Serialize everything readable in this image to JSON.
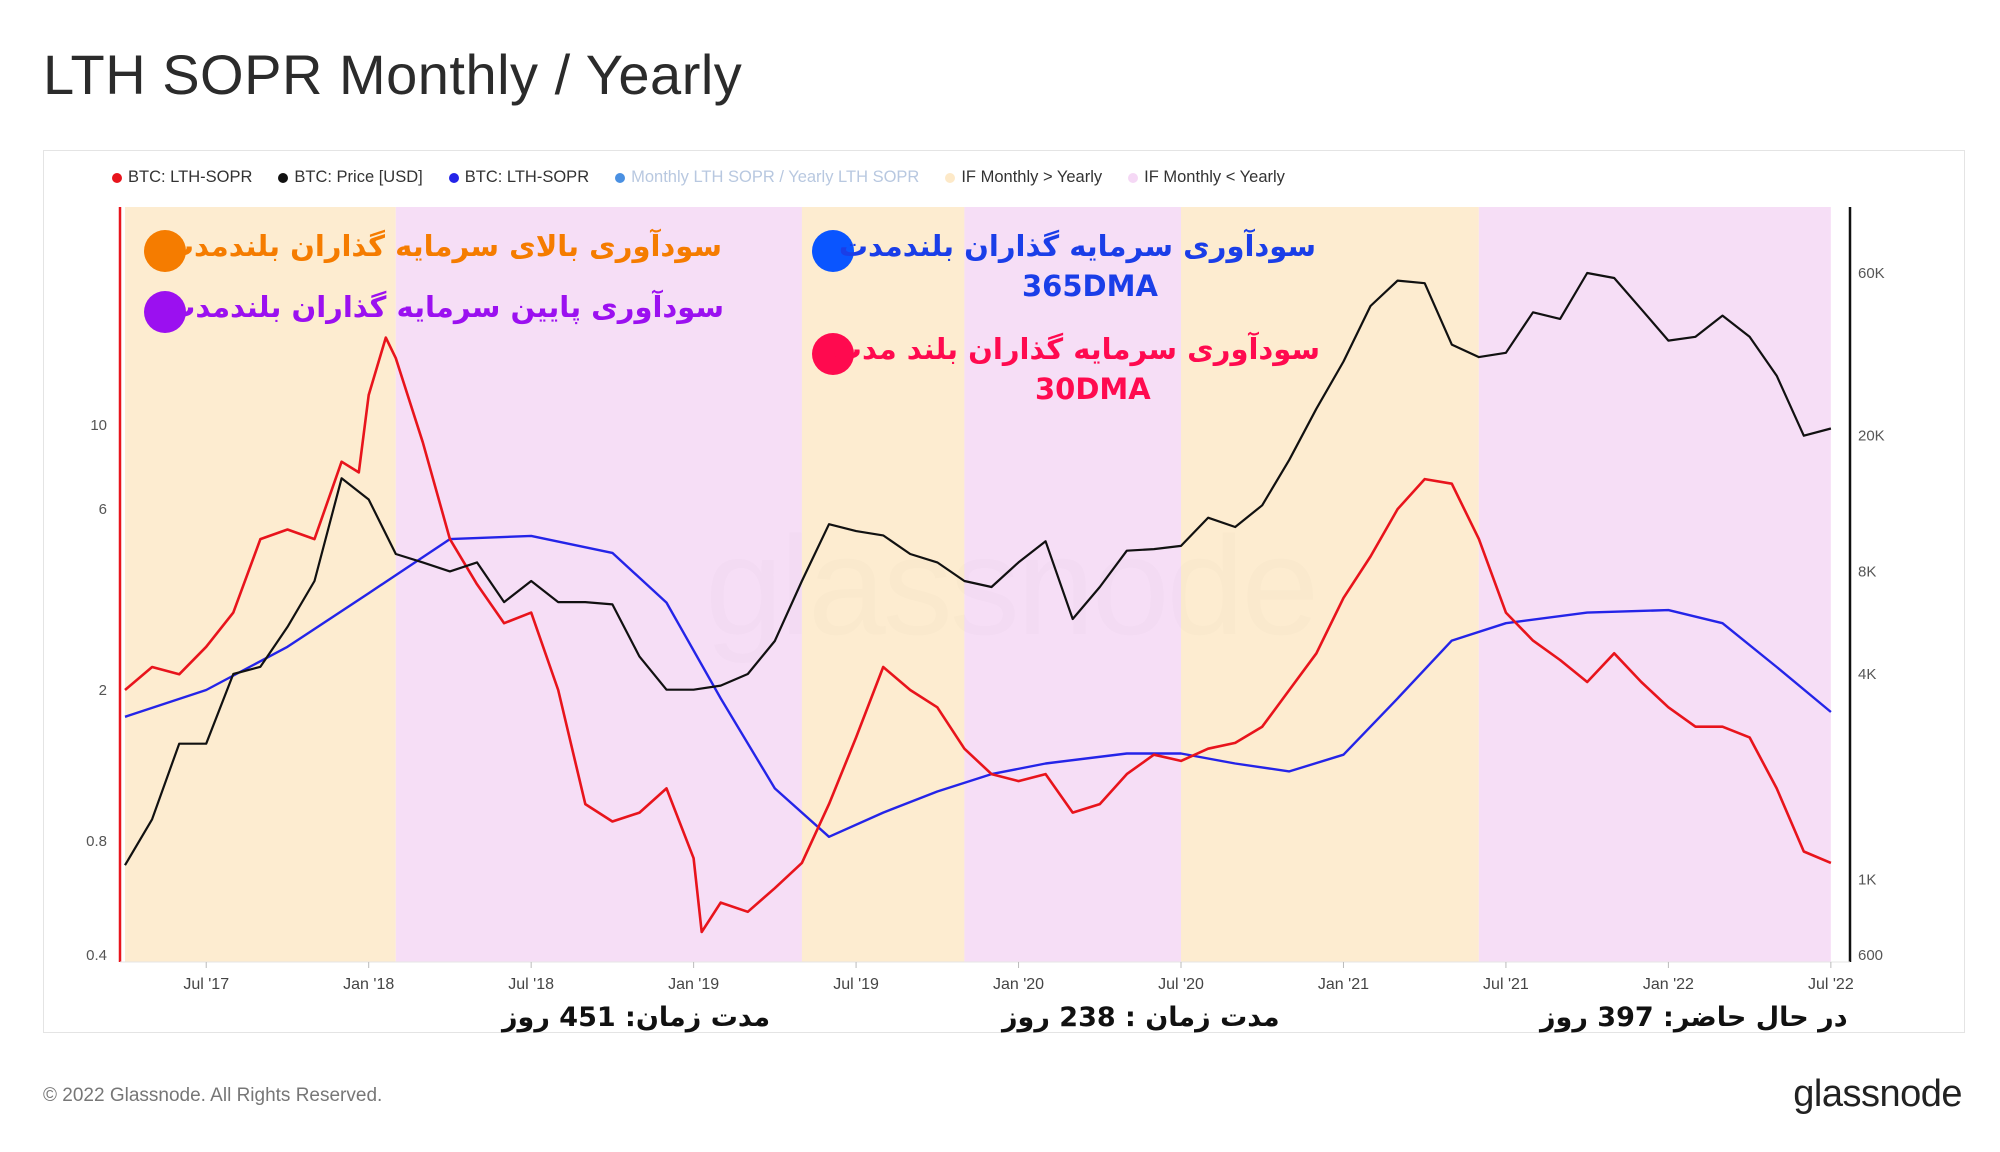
{
  "title": "LTH SOPR Monthly / Yearly",
  "legend": [
    {
      "label": "BTC: LTH-SOPR",
      "color": "#e8141c"
    },
    {
      "label": "BTC: Price [USD]",
      "color": "#111111"
    },
    {
      "label": "BTC: LTH-SOPR",
      "color": "#2424e8"
    },
    {
      "label": "Monthly LTH SOPR / Yearly LTH SOPR",
      "color": "#4a90e2"
    },
    {
      "label": "IF Monthly > Yearly",
      "color": "#fde9c8"
    },
    {
      "label": "IF Monthly < Yearly",
      "color": "#f5d8f5"
    }
  ],
  "annotations": {
    "above": "سودآوری بالای سرمایه گذاران بلندمدت",
    "below": "سودآوری پایین سرمایه گذاران بلندمدت",
    "ma365_line1": "سودآوری سرمایه گذاران بلندمدت",
    "ma365_line2": "365DMA",
    "ma30_line1": "سودآوری سرمایه گذاران بلند مدت",
    "ma30_line2": "30DMA"
  },
  "durations": {
    "d1": "مدت زمان: 451 روز",
    "d2": "مدت زمان : 238 روز",
    "d3": "در حال حاضر: 397 روز"
  },
  "watermark": "glassnode",
  "footer": {
    "copyright": "© 2022 Glassnode. All Rights Reserved.",
    "logo": "glassnode"
  },
  "colors": {
    "lth_sopr_30dma": "#e8141c",
    "price": "#111111",
    "lth_sopr_365dma": "#2424e8",
    "band_above": "#fde9c8",
    "band_below": "#f5d8f5",
    "annot_orange": "#f57c00",
    "annot_purple": "#9b10f0",
    "annot_blue": "#1a3ee8",
    "annot_red": "#ff0a4f",
    "bullet_orange": "#f57c00",
    "bullet_purple": "#9b10f0",
    "bullet_blue": "#0a55ff",
    "bullet_red": "#ff0a4f"
  },
  "chart_data": {
    "type": "line",
    "x_ticks": [
      "Jul '17",
      "Jan '18",
      "Jul '18",
      "Jan '19",
      "Jul '19",
      "Jan '20",
      "Jul '20",
      "Jan '21",
      "Jul '21",
      "Jan '22",
      "Jul '22"
    ],
    "left_axis": {
      "ticks": [
        "0.4",
        "0.8",
        "2",
        "6",
        "10"
      ],
      "scale": "log"
    },
    "right_axis": {
      "ticks": [
        "600",
        "1K",
        "4K",
        "8K",
        "20K",
        "60K"
      ],
      "scale": "log"
    },
    "bands": [
      {
        "label": "IF Monthly > Yearly",
        "from": "2017-04",
        "to": "2018-02"
      },
      {
        "label": "IF Monthly < Yearly",
        "from": "2018-02",
        "to": "2019-05"
      },
      {
        "label": "IF Monthly > Yearly",
        "from": "2019-05",
        "to": "2019-11"
      },
      {
        "label": "IF Monthly < Yearly",
        "from": "2019-11",
        "to": "2020-07"
      },
      {
        "label": "IF Monthly > Yearly",
        "from": "2020-07",
        "to": "2021-06"
      },
      {
        "label": "IF Monthly < Yearly",
        "from": "2021-06",
        "to": "2022-07"
      }
    ],
    "series": [
      {
        "name": "BTC: LTH-SOPR",
        "axis": "left",
        "points": [
          [
            "2017-04",
            2.0
          ],
          [
            "2017-05",
            2.3
          ],
          [
            "2017-06",
            2.2
          ],
          [
            "2017-07",
            2.6
          ],
          [
            "2017-08",
            3.2
          ],
          [
            "2017-09",
            5.0
          ],
          [
            "2017-10",
            5.3
          ],
          [
            "2017-11",
            5.0
          ],
          [
            "2017-12",
            8.0
          ],
          [
            "2017-12-20",
            7.5
          ],
          [
            "2018-01",
            12.0
          ],
          [
            "2018-01-20",
            17.0
          ],
          [
            "2018-02",
            15.0
          ],
          [
            "2018-03",
            9.0
          ],
          [
            "2018-04",
            5.0
          ],
          [
            "2018-05",
            3.8
          ],
          [
            "2018-06",
            3.0
          ],
          [
            "2018-07",
            3.2
          ],
          [
            "2018-08",
            2.0
          ],
          [
            "2018-09",
            1.0
          ],
          [
            "2018-10",
            0.9
          ],
          [
            "2018-11",
            0.95
          ],
          [
            "2018-12",
            1.1
          ],
          [
            "2019-01",
            0.72
          ],
          [
            "2019-01-10",
            0.46
          ],
          [
            "2019-02",
            0.55
          ],
          [
            "2019-03",
            0.52
          ],
          [
            "2019-04",
            0.6
          ],
          [
            "2019-05",
            0.7
          ],
          [
            "2019-06",
            1.0
          ],
          [
            "2019-07",
            1.5
          ],
          [
            "2019-08",
            2.3
          ],
          [
            "2019-09",
            2.0
          ],
          [
            "2019-10",
            1.8
          ],
          [
            "2019-11",
            1.4
          ],
          [
            "2019-12",
            1.2
          ],
          [
            "2020-01",
            1.15
          ],
          [
            "2020-02",
            1.2
          ],
          [
            "2020-03",
            0.95
          ],
          [
            "2020-04",
            1.0
          ],
          [
            "2020-05",
            1.2
          ],
          [
            "2020-06",
            1.35
          ],
          [
            "2020-07",
            1.3
          ],
          [
            "2020-08",
            1.4
          ],
          [
            "2020-09",
            1.45
          ],
          [
            "2020-10",
            1.6
          ],
          [
            "2020-11",
            2.0
          ],
          [
            "2020-12",
            2.5
          ],
          [
            "2021-01",
            3.5
          ],
          [
            "2021-02",
            4.5
          ],
          [
            "2021-03",
            6.0
          ],
          [
            "2021-04",
            7.2
          ],
          [
            "2021-05",
            7.0
          ],
          [
            "2021-06",
            5.0
          ],
          [
            "2021-07",
            3.2
          ],
          [
            "2021-08",
            2.7
          ],
          [
            "2021-09",
            2.4
          ],
          [
            "2021-10",
            2.1
          ],
          [
            "2021-11",
            2.5
          ],
          [
            "2021-12",
            2.1
          ],
          [
            "2022-01",
            1.8
          ],
          [
            "2022-02",
            1.6
          ],
          [
            "2022-03",
            1.6
          ],
          [
            "2022-04",
            1.5
          ],
          [
            "2022-05",
            1.1
          ],
          [
            "2022-06",
            0.75
          ],
          [
            "2022-07",
            0.7
          ]
        ]
      },
      {
        "name": "BTC: Price [USD]",
        "axis": "right",
        "points": [
          [
            "2017-04",
            1100
          ],
          [
            "2017-05",
            1500
          ],
          [
            "2017-06",
            2500
          ],
          [
            "2017-07",
            2500
          ],
          [
            "2017-08",
            4000
          ],
          [
            "2017-09",
            4200
          ],
          [
            "2017-10",
            5500
          ],
          [
            "2017-11",
            7500
          ],
          [
            "2017-12",
            15000
          ],
          [
            "2018-01",
            13000
          ],
          [
            "2018-02",
            9000
          ],
          [
            "2018-03",
            8500
          ],
          [
            "2018-04",
            8000
          ],
          [
            "2018-05",
            8500
          ],
          [
            "2018-06",
            6500
          ],
          [
            "2018-07",
            7500
          ],
          [
            "2018-08",
            6500
          ],
          [
            "2018-09",
            6500
          ],
          [
            "2018-10",
            6400
          ],
          [
            "2018-11",
            4500
          ],
          [
            "2018-12",
            3600
          ],
          [
            "2019-01",
            3600
          ],
          [
            "2019-02",
            3700
          ],
          [
            "2019-03",
            4000
          ],
          [
            "2019-04",
            5000
          ],
          [
            "2019-05",
            7500
          ],
          [
            "2019-06",
            11000
          ],
          [
            "2019-07",
            10500
          ],
          [
            "2019-08",
            10200
          ],
          [
            "2019-09",
            9000
          ],
          [
            "2019-10",
            8500
          ],
          [
            "2019-11",
            7500
          ],
          [
            "2019-12",
            7200
          ],
          [
            "2020-01",
            8500
          ],
          [
            "2020-02",
            9800
          ],
          [
            "2020-03",
            5800
          ],
          [
            "2020-04",
            7200
          ],
          [
            "2020-05",
            9200
          ],
          [
            "2020-06",
            9300
          ],
          [
            "2020-07",
            9500
          ],
          [
            "2020-08",
            11500
          ],
          [
            "2020-09",
            10800
          ],
          [
            "2020-10",
            12500
          ],
          [
            "2020-11",
            17000
          ],
          [
            "2020-12",
            24000
          ],
          [
            "2021-01",
            33000
          ],
          [
            "2021-02",
            48000
          ],
          [
            "2021-03",
            57000
          ],
          [
            "2021-04",
            56000
          ],
          [
            "2021-05",
            37000
          ],
          [
            "2021-06",
            34000
          ],
          [
            "2021-07",
            35000
          ],
          [
            "2021-08",
            46000
          ],
          [
            "2021-09",
            44000
          ],
          [
            "2021-10",
            60000
          ],
          [
            "2021-11",
            58000
          ],
          [
            "2021-12",
            47000
          ],
          [
            "2022-01",
            38000
          ],
          [
            "2022-02",
            39000
          ],
          [
            "2022-03",
            45000
          ],
          [
            "2022-04",
            39000
          ],
          [
            "2022-05",
            30000
          ],
          [
            "2022-06",
            20000
          ],
          [
            "2022-07",
            21000
          ]
        ]
      },
      {
        "name": "BTC: LTH-SOPR",
        "axis": "left",
        "points": [
          [
            "2017-04",
            1.7
          ],
          [
            "2017-07",
            2.0
          ],
          [
            "2017-10",
            2.6
          ],
          [
            "2018-01",
            3.6
          ],
          [
            "2018-04",
            5.0
          ],
          [
            "2018-07",
            5.1
          ],
          [
            "2018-10",
            4.6
          ],
          [
            "2018-12",
            3.4
          ],
          [
            "2019-02",
            1.9
          ],
          [
            "2019-04",
            1.1
          ],
          [
            "2019-06",
            0.82
          ],
          [
            "2019-08",
            0.95
          ],
          [
            "2019-10",
            1.08
          ],
          [
            "2019-12",
            1.2
          ],
          [
            "2020-02",
            1.28
          ],
          [
            "2020-05",
            1.36
          ],
          [
            "2020-07",
            1.36
          ],
          [
            "2020-09",
            1.28
          ],
          [
            "2020-11",
            1.22
          ],
          [
            "2021-01",
            1.35
          ],
          [
            "2021-03",
            1.9
          ],
          [
            "2021-05",
            2.7
          ],
          [
            "2021-07",
            3.0
          ],
          [
            "2021-10",
            3.2
          ],
          [
            "2022-01",
            3.25
          ],
          [
            "2022-03",
            3.0
          ],
          [
            "2022-05",
            2.3
          ],
          [
            "2022-07",
            1.75
          ]
        ]
      }
    ]
  }
}
